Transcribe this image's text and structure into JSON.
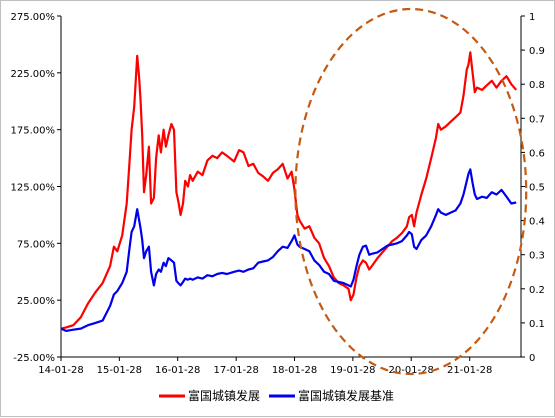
{
  "chart_data": {
    "type": "line",
    "title": "",
    "xlabel": "",
    "ylabel_left": "",
    "ylabel_right": "",
    "x_ticks": [
      "14-01-28",
      "15-01-28",
      "16-01-28",
      "17-01-28",
      "18-01-28",
      "19-01-28",
      "20-01-28",
      "21-01-28"
    ],
    "y_left": {
      "ticks": [
        "-25.00%",
        "25.00%",
        "75.00%",
        "125.00%",
        "175.00%",
        "225.00%",
        "275.00%"
      ],
      "range": [
        -25,
        275
      ],
      "unit": "%"
    },
    "y_right": {
      "ticks": [
        "0",
        "0.1",
        "0.2",
        "0.3",
        "0.4",
        "0.5",
        "0.6",
        "0.7",
        "0.8",
        "0.9",
        "1"
      ],
      "range": [
        0,
        1
      ]
    },
    "grid": false,
    "legend_position": "bottom",
    "series": [
      {
        "name": "富国城镇发展",
        "color": "#ff0000",
        "axis": "left",
        "points": [
          [
            "2014-01-28",
            0
          ],
          [
            "2014-03-01",
            1
          ],
          [
            "2014-04-15",
            3
          ],
          [
            "2014-06-01",
            10
          ],
          [
            "2014-07-15",
            22
          ],
          [
            "2014-09-01",
            32
          ],
          [
            "2014-10-15",
            40
          ],
          [
            "2014-12-01",
            55
          ],
          [
            "2014-12-25",
            72
          ],
          [
            "2015-01-15",
            68
          ],
          [
            "2015-02-15",
            82
          ],
          [
            "2015-03-15",
            110
          ],
          [
            "2015-04-01",
            145
          ],
          [
            "2015-04-15",
            175
          ],
          [
            "2015-05-01",
            195
          ],
          [
            "2015-05-20",
            240
          ],
          [
            "2015-06-01",
            220
          ],
          [
            "2015-06-10",
            200
          ],
          [
            "2015-06-20",
            170
          ],
          [
            "2015-07-01",
            120
          ],
          [
            "2015-07-15",
            135
          ],
          [
            "2015-08-01",
            160
          ],
          [
            "2015-08-15",
            110
          ],
          [
            "2015-09-01",
            115
          ],
          [
            "2015-09-15",
            150
          ],
          [
            "2015-10-01",
            170
          ],
          [
            "2015-10-15",
            155
          ],
          [
            "2015-11-01",
            175
          ],
          [
            "2015-11-15",
            160
          ],
          [
            "2015-12-01",
            170
          ],
          [
            "2015-12-20",
            180
          ],
          [
            "2016-01-05",
            175
          ],
          [
            "2016-01-20",
            120
          ],
          [
            "2016-02-01",
            112
          ],
          [
            "2016-02-15",
            100
          ],
          [
            "2016-03-01",
            110
          ],
          [
            "2016-03-15",
            130
          ],
          [
            "2016-04-01",
            125
          ],
          [
            "2016-04-15",
            135
          ],
          [
            "2016-05-01",
            130
          ],
          [
            "2016-06-01",
            138
          ],
          [
            "2016-07-01",
            135
          ],
          [
            "2016-08-01",
            148
          ],
          [
            "2016-09-01",
            152
          ],
          [
            "2016-10-01",
            150
          ],
          [
            "2016-11-01",
            155
          ],
          [
            "2016-12-01",
            152
          ],
          [
            "2017-01-15",
            147
          ],
          [
            "2017-02-15",
            157
          ],
          [
            "2017-03-15",
            155
          ],
          [
            "2017-04-15",
            143
          ],
          [
            "2017-05-15",
            145
          ],
          [
            "2017-06-15",
            137
          ],
          [
            "2017-07-15",
            134
          ],
          [
            "2017-08-15",
            130
          ],
          [
            "2017-09-15",
            137
          ],
          [
            "2017-10-15",
            140
          ],
          [
            "2017-11-15",
            145
          ],
          [
            "2017-12-15",
            132
          ],
          [
            "2018-01-10",
            138
          ],
          [
            "2018-01-28",
            122
          ],
          [
            "2018-02-15",
            100
          ],
          [
            "2018-03-01",
            95
          ],
          [
            "2018-04-01",
            88
          ],
          [
            "2018-05-01",
            90
          ],
          [
            "2018-06-01",
            80
          ],
          [
            "2018-07-01",
            75
          ],
          [
            "2018-08-01",
            62
          ],
          [
            "2018-09-01",
            55
          ],
          [
            "2018-10-01",
            45
          ],
          [
            "2018-11-01",
            40
          ],
          [
            "2018-12-01",
            38
          ],
          [
            "2019-01-01",
            35
          ],
          [
            "2019-01-15",
            25
          ],
          [
            "2019-02-01",
            30
          ],
          [
            "2019-02-20",
            45
          ],
          [
            "2019-03-10",
            55
          ],
          [
            "2019-04-01",
            60
          ],
          [
            "2019-04-20",
            58
          ],
          [
            "2019-05-10",
            52
          ],
          [
            "2019-06-01",
            56
          ],
          [
            "2019-07-01",
            62
          ],
          [
            "2019-08-01",
            67
          ],
          [
            "2019-09-01",
            72
          ],
          [
            "2019-10-01",
            77
          ],
          [
            "2019-11-01",
            80
          ],
          [
            "2019-12-01",
            84
          ],
          [
            "2020-01-01",
            90
          ],
          [
            "2020-01-15",
            98
          ],
          [
            "2020-02-01",
            100
          ],
          [
            "2020-02-15",
            90
          ],
          [
            "2020-03-01",
            102
          ],
          [
            "2020-04-01",
            118
          ],
          [
            "2020-05-01",
            132
          ],
          [
            "2020-06-01",
            150
          ],
          [
            "2020-07-01",
            168
          ],
          [
            "2020-07-15",
            180
          ],
          [
            "2020-08-01",
            175
          ],
          [
            "2020-09-01",
            178
          ],
          [
            "2020-10-01",
            182
          ],
          [
            "2020-11-01",
            186
          ],
          [
            "2020-12-01",
            190
          ],
          [
            "2020-12-20",
            205
          ],
          [
            "2021-01-10",
            228
          ],
          [
            "2021-01-20",
            232
          ],
          [
            "2021-02-01",
            243
          ],
          [
            "2021-02-15",
            225
          ],
          [
            "2021-03-01",
            208
          ],
          [
            "2021-03-15",
            212
          ],
          [
            "2021-04-15",
            210
          ],
          [
            "2021-05-15",
            214
          ],
          [
            "2021-06-15",
            218
          ],
          [
            "2021-07-15",
            212
          ],
          [
            "2021-08-15",
            218
          ],
          [
            "2021-09-15",
            222
          ],
          [
            "2021-10-15",
            215
          ],
          [
            "2021-11-15",
            210
          ]
        ]
      },
      {
        "name": "富国城镇发展基准",
        "color": "#0000ee",
        "axis": "left",
        "points": [
          [
            "2014-01-28",
            0
          ],
          [
            "2014-03-01",
            -2
          ],
          [
            "2014-04-15",
            -1
          ],
          [
            "2014-06-01",
            0
          ],
          [
            "2014-07-15",
            3
          ],
          [
            "2014-09-01",
            5
          ],
          [
            "2014-10-15",
            7
          ],
          [
            "2014-12-01",
            20
          ],
          [
            "2014-12-25",
            30
          ],
          [
            "2015-01-15",
            33
          ],
          [
            "2015-02-15",
            40
          ],
          [
            "2015-03-15",
            50
          ],
          [
            "2015-04-01",
            70
          ],
          [
            "2015-04-15",
            85
          ],
          [
            "2015-05-01",
            90
          ],
          [
            "2015-05-20",
            105
          ],
          [
            "2015-06-01",
            95
          ],
          [
            "2015-06-10",
            88
          ],
          [
            "2015-06-20",
            78
          ],
          [
            "2015-07-01",
            62
          ],
          [
            "2015-07-15",
            68
          ],
          [
            "2015-08-01",
            72
          ],
          [
            "2015-08-15",
            50
          ],
          [
            "2015-09-01",
            38
          ],
          [
            "2015-09-15",
            48
          ],
          [
            "2015-10-01",
            52
          ],
          [
            "2015-10-15",
            50
          ],
          [
            "2015-11-01",
            58
          ],
          [
            "2015-11-15",
            55
          ],
          [
            "2015-12-01",
            62
          ],
          [
            "2015-12-20",
            60
          ],
          [
            "2016-01-05",
            58
          ],
          [
            "2016-01-20",
            42
          ],
          [
            "2016-02-01",
            40
          ],
          [
            "2016-02-15",
            38
          ],
          [
            "2016-03-01",
            41
          ],
          [
            "2016-03-15",
            44
          ],
          [
            "2016-04-01",
            43
          ],
          [
            "2016-04-15",
            44
          ],
          [
            "2016-05-01",
            43
          ],
          [
            "2016-06-01",
            45
          ],
          [
            "2016-07-01",
            44
          ],
          [
            "2016-08-01",
            47
          ],
          [
            "2016-09-01",
            46
          ],
          [
            "2016-10-01",
            48
          ],
          [
            "2016-11-01",
            49
          ],
          [
            "2016-12-01",
            48
          ],
          [
            "2017-01-15",
            50
          ],
          [
            "2017-02-15",
            51
          ],
          [
            "2017-03-15",
            50
          ],
          [
            "2017-04-15",
            52
          ],
          [
            "2017-05-15",
            53
          ],
          [
            "2017-06-15",
            58
          ],
          [
            "2017-07-15",
            59
          ],
          [
            "2017-08-15",
            60
          ],
          [
            "2017-09-15",
            63
          ],
          [
            "2017-10-15",
            68
          ],
          [
            "2017-11-15",
            72
          ],
          [
            "2017-12-15",
            71
          ],
          [
            "2018-01-10",
            77
          ],
          [
            "2018-01-28",
            82
          ],
          [
            "2018-02-15",
            74
          ],
          [
            "2018-03-01",
            72
          ],
          [
            "2018-04-01",
            70
          ],
          [
            "2018-05-01",
            68
          ],
          [
            "2018-06-01",
            60
          ],
          [
            "2018-07-01",
            56
          ],
          [
            "2018-08-01",
            50
          ],
          [
            "2018-09-01",
            48
          ],
          [
            "2018-10-01",
            42
          ],
          [
            "2018-11-01",
            41
          ],
          [
            "2018-12-01",
            40
          ],
          [
            "2019-01-01",
            38
          ],
          [
            "2019-01-15",
            37
          ],
          [
            "2019-02-01",
            43
          ],
          [
            "2019-02-20",
            55
          ],
          [
            "2019-03-10",
            65
          ],
          [
            "2019-04-01",
            72
          ],
          [
            "2019-04-20",
            73
          ],
          [
            "2019-05-10",
            65
          ],
          [
            "2019-06-01",
            66
          ],
          [
            "2019-07-01",
            67
          ],
          [
            "2019-08-01",
            70
          ],
          [
            "2019-09-01",
            73
          ],
          [
            "2019-10-01",
            74
          ],
          [
            "2019-11-01",
            75
          ],
          [
            "2019-12-01",
            77
          ],
          [
            "2020-01-01",
            82
          ],
          [
            "2020-01-15",
            85
          ],
          [
            "2020-02-01",
            83
          ],
          [
            "2020-02-15",
            72
          ],
          [
            "2020-03-01",
            70
          ],
          [
            "2020-04-01",
            78
          ],
          [
            "2020-05-01",
            82
          ],
          [
            "2020-06-01",
            90
          ],
          [
            "2020-07-01",
            100
          ],
          [
            "2020-07-15",
            105
          ],
          [
            "2020-08-01",
            102
          ],
          [
            "2020-09-01",
            100
          ],
          [
            "2020-10-01",
            102
          ],
          [
            "2020-11-01",
            104
          ],
          [
            "2020-12-01",
            110
          ],
          [
            "2020-12-20",
            118
          ],
          [
            "2021-01-10",
            130
          ],
          [
            "2021-01-20",
            136
          ],
          [
            "2021-02-01",
            140
          ],
          [
            "2021-02-15",
            128
          ],
          [
            "2021-03-01",
            118
          ],
          [
            "2021-03-15",
            114
          ],
          [
            "2021-04-15",
            116
          ],
          [
            "2021-05-15",
            115
          ],
          [
            "2021-06-15",
            120
          ],
          [
            "2021-07-15",
            118
          ],
          [
            "2021-08-15",
            122
          ],
          [
            "2021-09-15",
            116
          ],
          [
            "2021-10-15",
            110
          ],
          [
            "2021-11-15",
            111
          ]
        ]
      }
    ],
    "annotation": {
      "type": "dashed-ellipse",
      "color": "#c55a11",
      "x_range": [
        "2018-02-15",
        "2021-11-15"
      ]
    }
  }
}
